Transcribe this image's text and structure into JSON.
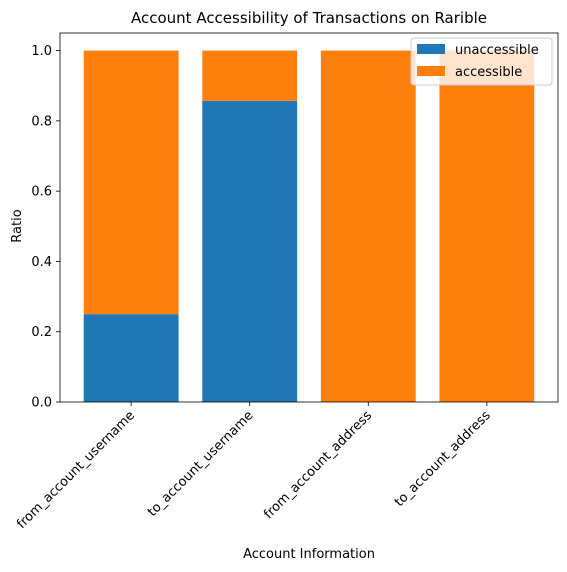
{
  "chart_data": {
    "type": "bar",
    "stacked": true,
    "title": "Account Accessibility of Transactions on Rarible",
    "xlabel": "Account Information",
    "ylabel": "Ratio",
    "categories": [
      "from_account_username",
      "to_account_username",
      "from_account_address",
      "to_account_address"
    ],
    "series": [
      {
        "name": "unaccessible",
        "color": "#1f77b4",
        "values": [
          0.25,
          0.857,
          0.0,
          0.0
        ]
      },
      {
        "name": "accessible",
        "color": "#ff7f0e",
        "values": [
          0.75,
          0.143,
          1.0,
          1.0
        ]
      }
    ],
    "ylim": [
      0,
      1.05
    ],
    "yticks": [
      "0.0",
      "0.2",
      "0.4",
      "0.6",
      "0.8",
      "1.0"
    ],
    "grid": false,
    "legend_position": "top-right"
  }
}
